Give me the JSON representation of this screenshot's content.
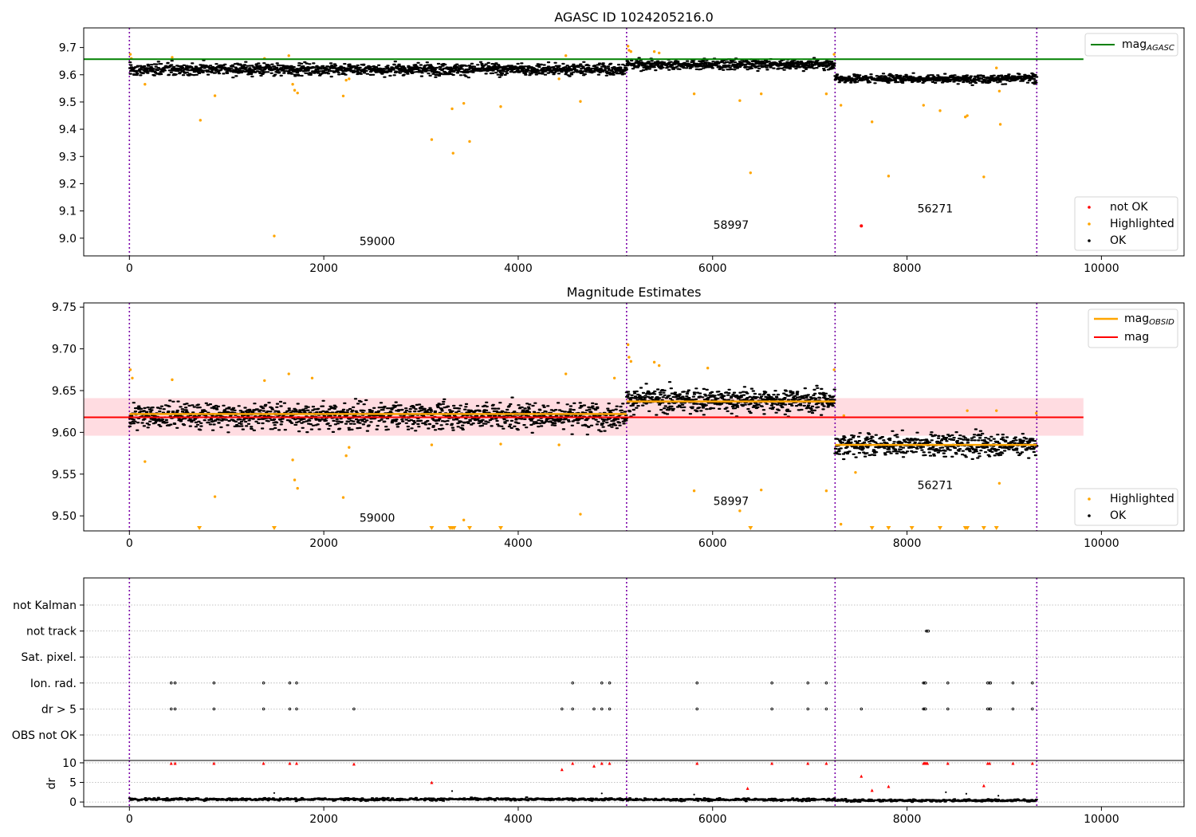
{
  "figure": {
    "background": "#ffffff"
  },
  "colors": {
    "ok": "#000000",
    "highlighted": "#ffa500",
    "not_ok": "#ff0000",
    "agasc_line": "#008000",
    "mag_line": "#ff0000",
    "obsid_line": "#ffa500",
    "band": "#ffc0c8",
    "obs_boundary": "#7b00a8",
    "grid": "#b0b0b0"
  },
  "chart_data": [
    {
      "id": "top",
      "type": "scatter",
      "title": "AGASC ID 1024205216.0",
      "xlim": [
        -470,
        10850
      ],
      "ylim": [
        8.935,
        9.772
      ],
      "xticks": [
        0,
        2000,
        4000,
        6000,
        8000,
        10000
      ],
      "yticks": [
        9.0,
        9.1,
        9.2,
        9.3,
        9.4,
        9.5,
        9.6,
        9.7
      ],
      "ytick_labels": [
        "9.0",
        "9.1",
        "9.2",
        "9.3",
        "9.4",
        "9.5",
        "9.6",
        "9.7"
      ],
      "obs_boundaries": [
        0,
        5115,
        7260,
        9335
      ],
      "obsid_labels": [
        {
          "text": "59000",
          "x": 2550,
          "y": 8.975
        },
        {
          "text": "58997",
          "x": 6190,
          "y": 9.035
        },
        {
          "text": "56271",
          "x": 8290,
          "y": 9.095
        }
      ],
      "agasc_mag": {
        "value": 9.657,
        "x_range": [
          -470,
          9815
        ]
      },
      "ok_segments": [
        {
          "x0": 0,
          "x1": 5115,
          "mean": 9.62,
          "spread": 0.018
        },
        {
          "x0": 5115,
          "x1": 7260,
          "mean": 9.638,
          "spread": 0.016
        },
        {
          "x0": 7260,
          "x1": 9335,
          "mean": 9.586,
          "spread": 0.013
        }
      ],
      "highlighted_points": [
        [
          10,
          9.675
        ],
        [
          20,
          9.66
        ],
        [
          160,
          9.565
        ],
        [
          440,
          9.664
        ],
        [
          730,
          9.433
        ],
        [
          880,
          9.523
        ],
        [
          1490,
          9.008
        ],
        [
          1390,
          9.66
        ],
        [
          1640,
          9.67
        ],
        [
          1680,
          9.565
        ],
        [
          1700,
          9.543
        ],
        [
          1730,
          9.533
        ],
        [
          2200,
          9.522
        ],
        [
          2230,
          9.58
        ],
        [
          2260,
          9.585
        ],
        [
          3110,
          9.362
        ],
        [
          3320,
          9.475
        ],
        [
          3330,
          9.312
        ],
        [
          3500,
          9.355
        ],
        [
          3440,
          9.495
        ],
        [
          3820,
          9.483
        ],
        [
          4420,
          9.585
        ],
        [
          4490,
          9.67
        ],
        [
          4640,
          9.502
        ],
        [
          5130,
          9.705
        ],
        [
          5140,
          9.69
        ],
        [
          5160,
          9.685
        ],
        [
          5400,
          9.685
        ],
        [
          5450,
          9.68
        ],
        [
          5810,
          9.53
        ],
        [
          6280,
          9.505
        ],
        [
          6390,
          9.24
        ],
        [
          6500,
          9.53
        ],
        [
          7170,
          9.53
        ],
        [
          7250,
          9.675
        ],
        [
          7320,
          9.488
        ],
        [
          7640,
          9.427
        ],
        [
          7810,
          9.228
        ],
        [
          8170,
          9.488
        ],
        [
          8340,
          9.468
        ],
        [
          8600,
          9.445
        ],
        [
          8620,
          9.45
        ],
        [
          8790,
          9.225
        ],
        [
          8920,
          9.625
        ],
        [
          8950,
          9.54
        ],
        [
          8960,
          9.418
        ]
      ],
      "not_ok_points": [
        [
          7530,
          9.045
        ]
      ],
      "legend": {
        "position": "top-right",
        "entries": [
          {
            "label": "mag",
            "sub": "AGASC",
            "color": "#008000"
          }
        ]
      },
      "legend2": {
        "position": "lower-right",
        "entries": [
          {
            "label": "not OK",
            "color": "#ff0000"
          },
          {
            "label": "Highlighted",
            "color": "#ffa500"
          },
          {
            "label": "OK",
            "color": "#000000"
          }
        ]
      }
    },
    {
      "id": "middle",
      "type": "scatter",
      "title": "Magnitude Estimates",
      "xlim": [
        -470,
        10850
      ],
      "ylim": [
        9.482,
        9.755
      ],
      "xticks": [
        0,
        2000,
        4000,
        6000,
        8000,
        10000
      ],
      "yticks": [
        9.5,
        9.55,
        9.6,
        9.65,
        9.7,
        9.75
      ],
      "ytick_labels": [
        "9.50",
        "9.55",
        "9.60",
        "9.65",
        "9.70",
        "9.75"
      ],
      "obs_boundaries": [
        0,
        5115,
        7260,
        9335
      ],
      "obsid_labels": [
        {
          "text": "59000",
          "x": 2550,
          "y": 9.493
        },
        {
          "text": "58997",
          "x": 6190,
          "y": 9.513
        },
        {
          "text": "56271",
          "x": 8290,
          "y": 9.532
        }
      ],
      "mag": {
        "value": 9.618,
        "band": [
          9.596,
          9.641
        ],
        "x_range": [
          -470,
          9815
        ]
      },
      "obsid_mags": [
        {
          "x0": 0,
          "x1": 5115,
          "value": 9.622
        },
        {
          "x0": 5115,
          "x1": 7260,
          "value": 9.637
        },
        {
          "x0": 7260,
          "x1": 9335,
          "value": 9.585
        }
      ],
      "ok_segments": [
        {
          "x0": 0,
          "x1": 5115,
          "mean": 9.62,
          "spread": 0.013
        },
        {
          "x0": 5115,
          "x1": 7260,
          "mean": 9.638,
          "spread": 0.012
        },
        {
          "x0": 7260,
          "x1": 9335,
          "mean": 9.585,
          "spread": 0.011
        }
      ],
      "highlighted_points": [
        [
          10,
          9.675
        ],
        [
          30,
          9.665
        ],
        [
          160,
          9.565
        ],
        [
          440,
          9.663
        ],
        [
          880,
          9.523
        ],
        [
          1390,
          9.662
        ],
        [
          1640,
          9.67
        ],
        [
          1680,
          9.567
        ],
        [
          1700,
          9.543
        ],
        [
          1730,
          9.533
        ],
        [
          1880,
          9.665
        ],
        [
          2200,
          9.522
        ],
        [
          2230,
          9.572
        ],
        [
          2260,
          9.582
        ],
        [
          3110,
          9.585
        ],
        [
          3440,
          9.495
        ],
        [
          3820,
          9.586
        ],
        [
          4420,
          9.585
        ],
        [
          4490,
          9.67
        ],
        [
          4640,
          9.502
        ],
        [
          4990,
          9.665
        ],
        [
          5130,
          9.705
        ],
        [
          5140,
          9.69
        ],
        [
          5160,
          9.685
        ],
        [
          5400,
          9.684
        ],
        [
          5450,
          9.68
        ],
        [
          5810,
          9.53
        ],
        [
          5950,
          9.677
        ],
        [
          6280,
          9.506
        ],
        [
          6500,
          9.531
        ],
        [
          7170,
          9.53
        ],
        [
          7250,
          9.675
        ],
        [
          7350,
          9.62
        ],
        [
          7320,
          9.49
        ],
        [
          7470,
          9.552
        ],
        [
          8620,
          9.626
        ],
        [
          8920,
          9.626
        ],
        [
          8950,
          9.539
        ],
        [
          9330,
          9.623
        ]
      ],
      "clipped_points_x": [
        720,
        1490,
        3110,
        3300,
        3320,
        3340,
        3500,
        3820,
        6390,
        7640,
        7810,
        8050,
        8340,
        8600,
        8620,
        8790,
        8920
      ],
      "legend": {
        "position": "top-right",
        "entries": [
          {
            "label": "mag",
            "sub": "OBSID",
            "color": "#ffa500"
          },
          {
            "label": "mag",
            "sub": "",
            "color": "#ff0000"
          }
        ]
      },
      "legend2": {
        "position": "lower-right",
        "entries": [
          {
            "label": "Highlighted",
            "color": "#ffa500"
          },
          {
            "label": "OK",
            "color": "#000000"
          }
        ]
      }
    },
    {
      "id": "flags",
      "type": "scatter",
      "xlim": [
        -470,
        10850
      ],
      "obs_boundaries": [
        0,
        5115,
        7260,
        9335
      ],
      "categories": [
        "not Kalman",
        "not track",
        "Sat. pixel.",
        "Ion. rad.",
        "dr > 5",
        "OBS not OK"
      ],
      "flag_points": {
        "not track": [
          8200,
          8210,
          8220
        ],
        "Ion. rad.": [
          430,
          470,
          870,
          1380,
          1650,
          1720,
          4560,
          4860,
          4940,
          5840,
          6610,
          6980,
          7170,
          8170,
          8180,
          8190,
          8420,
          8830,
          8850,
          8860,
          9090,
          9290
        ],
        "dr > 5": [
          430,
          470,
          870,
          1380,
          1650,
          1720,
          2310,
          4450,
          4560,
          4780,
          4860,
          4940,
          5840,
          6610,
          6980,
          7170,
          7530,
          8170,
          8180,
          8190,
          8420,
          8830,
          8850,
          8860,
          9090,
          9290
        ]
      }
    },
    {
      "id": "dr",
      "type": "scatter",
      "ylabel": "dr",
      "xlim": [
        -470,
        10850
      ],
      "ylim": [
        -1.2,
        10.6
      ],
      "yticks": [
        0,
        5,
        10
      ],
      "xticks": [
        0,
        2000,
        4000,
        6000,
        8000,
        10000
      ],
      "obs_boundaries": [
        0,
        5115,
        7260,
        9335
      ],
      "red_markers": [
        [
          430,
          9.9
        ],
        [
          470,
          9.9
        ],
        [
          870,
          9.9
        ],
        [
          1380,
          9.9
        ],
        [
          1650,
          9.9
        ],
        [
          1720,
          9.9
        ],
        [
          2310,
          9.7
        ],
        [
          3110,
          5.0
        ],
        [
          4450,
          8.3
        ],
        [
          4560,
          9.9
        ],
        [
          4780,
          9.2
        ],
        [
          4860,
          9.9
        ],
        [
          4940,
          9.9
        ],
        [
          5840,
          9.9
        ],
        [
          6360,
          3.5
        ],
        [
          6610,
          9.9
        ],
        [
          6980,
          9.9
        ],
        [
          7170,
          9.9
        ],
        [
          7530,
          6.6
        ],
        [
          7640,
          3.0
        ],
        [
          7810,
          4.0
        ],
        [
          8170,
          9.9
        ],
        [
          8180,
          9.9
        ],
        [
          8190,
          9.9
        ],
        [
          8200,
          9.9
        ],
        [
          8210,
          9.9
        ],
        [
          8420,
          9.9
        ],
        [
          8790,
          4.2
        ],
        [
          8830,
          9.9
        ],
        [
          8850,
          9.9
        ],
        [
          9090,
          9.9
        ],
        [
          9290,
          9.9
        ]
      ],
      "extra_black": [
        [
          1490,
          2.3
        ],
        [
          3320,
          2.8
        ],
        [
          4860,
          2.2
        ],
        [
          5810,
          1.9
        ],
        [
          8400,
          2.5
        ],
        [
          8610,
          2.1
        ],
        [
          8940,
          1.6
        ]
      ]
    }
  ]
}
